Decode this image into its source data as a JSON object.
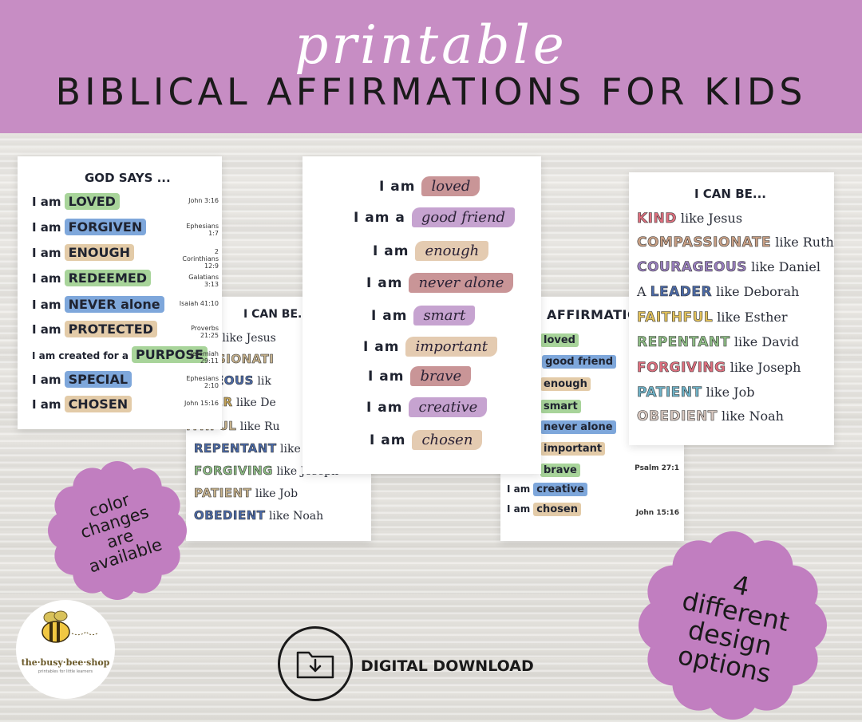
{
  "header": {
    "script_title": "printable",
    "main_title": "BIBLICAL AFFIRMATIONS FOR KIDS"
  },
  "god_says": {
    "title": "GOD SAYS ...",
    "rows": [
      {
        "prefix": "I am",
        "word": "LOVED",
        "ref": "John 3:16",
        "color": "#a8d49a"
      },
      {
        "prefix": "I am",
        "word": "FORGIVEN",
        "ref": "Ephesians 1:7",
        "color": "#7ea7db"
      },
      {
        "prefix": "I am",
        "word": "ENOUGH",
        "ref": "2 Corinthians 12:9",
        "color": "#e3cba8"
      },
      {
        "prefix": "I am",
        "word": "REDEEMED",
        "ref": "Galatians 3:13",
        "color": "#a8d49a"
      },
      {
        "prefix": "I am",
        "word": "NEVER alone",
        "ref": "Isaiah 41:10",
        "color": "#7ea7db"
      },
      {
        "prefix": "I am",
        "word": "PROTECTED",
        "ref": "Proverbs 21:25",
        "color": "#e3cba8"
      },
      {
        "prefix": "I am  created for a",
        "word": "PURPOSE",
        "ref": "Jeremiah 29:11",
        "color": "#a8d49a"
      },
      {
        "prefix": "I am",
        "word": "SPECIAL",
        "ref": "Ephesians 2:10",
        "color": "#7ea7db"
      },
      {
        "prefix": "I am",
        "word": "CHOSEN",
        "ref": "John 15:16",
        "color": "#e3cba8"
      }
    ]
  },
  "can_be_left": {
    "title": "I CAN BE...",
    "rows": [
      {
        "word": "D",
        "rest": " like Jesus",
        "color": "#6a8a6a"
      },
      {
        "word": "IPASSIONATI",
        "rest": "",
        "color": "#c9b48e"
      },
      {
        "word": "RAGEOUS",
        "rest": " lik",
        "color": "#4b6aa8"
      },
      {
        "word": "EADER",
        "rest": " like De",
        "color": "#c9a85a"
      },
      {
        "word": "ITHFUL",
        "rest": " like Ru",
        "color": "#c9b48e"
      },
      {
        "word": "REPENTANT",
        "rest": " like",
        "color": "#4b6aa8"
      },
      {
        "word": "FORGIVING",
        "rest": " like Joseph",
        "color": "#8fbf86"
      },
      {
        "word": "PATIENT",
        "rest": " like Job",
        "color": "#c9b48e"
      },
      {
        "word": "OBEDIENT",
        "rest": " like Noah",
        "color": "#4b6aa8"
      }
    ]
  },
  "script_page": {
    "rows": [
      {
        "prefix": "I am",
        "word": "loved",
        "color": "#c99597"
      },
      {
        "prefix": "I am a",
        "word": "good friend",
        "color": "#c6a3d0"
      },
      {
        "prefix": "I am",
        "word": "enough",
        "color": "#e4cbb1"
      },
      {
        "prefix": "I am",
        "word": "never alone",
        "color": "#c99597"
      },
      {
        "prefix": "I am",
        "word": "smart",
        "color": "#c6a3d0"
      },
      {
        "prefix": "I am",
        "word": "important",
        "color": "#e4cbb1"
      },
      {
        "prefix": "I am",
        "word": "brave",
        "color": "#c99597"
      },
      {
        "prefix": "I am",
        "word": "creative",
        "color": "#c6a3d0"
      },
      {
        "prefix": "I am",
        "word": "chosen",
        "color": "#e4cbb1"
      }
    ]
  },
  "affirmation_page": {
    "title": "AFFIRMATION",
    "rows": [
      {
        "prefix": "",
        "word": "loved",
        "color": "#a8d49a"
      },
      {
        "prefix": "a",
        "word": "good friend",
        "color": "#7ea7db"
      },
      {
        "prefix": "",
        "word": "enough",
        "color": "#e3cba8"
      },
      {
        "prefix": "",
        "word": "smart",
        "color": "#a8d49a"
      },
      {
        "prefix": "",
        "word": "never alone",
        "color": "#7ea7db"
      },
      {
        "prefix": "",
        "word": "important",
        "color": "#e3cba8"
      },
      {
        "prefix": "",
        "word": "brave",
        "color": "#a8d49a"
      },
      {
        "prefix": "I am",
        "word": "creative",
        "color": "#7ea7db"
      },
      {
        "prefix": "I am",
        "word": "chosen",
        "color": "#e3cba8"
      }
    ],
    "refs": [
      "Psalm 27:1",
      "John 15:16"
    ]
  },
  "can_be_right": {
    "title": "I CAN BE...",
    "rows": [
      {
        "pre": "",
        "word": "KIND",
        "rest": " like Jesus",
        "color": "#e0707f"
      },
      {
        "pre": "",
        "word": "COMPASSIONATE",
        "rest": " like Ruth",
        "color": "#c9a085"
      },
      {
        "pre": "",
        "word": "COURAGEOUS",
        "rest": " like Daniel",
        "color": "#9a80c0"
      },
      {
        "pre": "A ",
        "word": "LEADER",
        "rest": " like Deborah",
        "color": "#4b6aa8"
      },
      {
        "pre": "",
        "word": "FAITHFUL",
        "rest": " like Esther",
        "color": "#e3c25c"
      },
      {
        "pre": "",
        "word": "REPENTANT",
        "rest": " like David",
        "color": "#8fbf86"
      },
      {
        "pre": "",
        "word": "FORGIVING",
        "rest": " like Joseph",
        "color": "#e0707f"
      },
      {
        "pre": "",
        "word": "PATIENT",
        "rest": " like Job",
        "color": "#6fb3c8"
      },
      {
        "pre": "",
        "word": "OBEDIENT",
        "rest": " like Noah",
        "color": "#d8c8c0"
      }
    ]
  },
  "badges": {
    "colors": "color changes are available",
    "designs": "4 different design options",
    "fill": "#c17ec0"
  },
  "logo": {
    "name": "the·busy·bee·shop",
    "tagline": "printables for little learners",
    "icon": "bee-icon"
  },
  "download": {
    "icon": "folder-download-icon",
    "label": "DIGITAL DOWNLOAD"
  }
}
